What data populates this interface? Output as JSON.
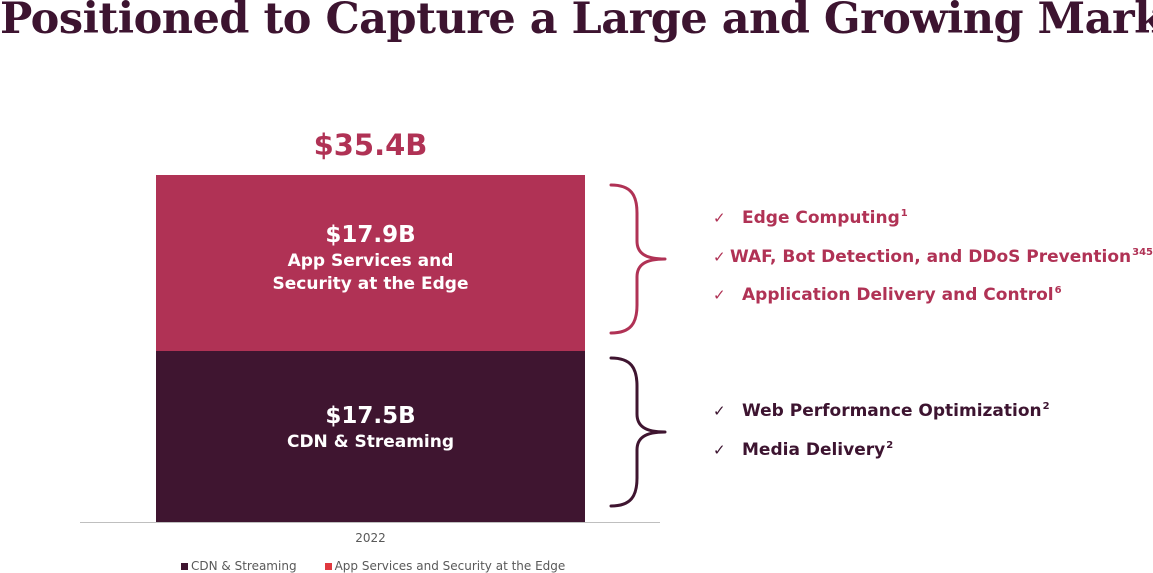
{
  "title": "Positioned to Capture a Large and Growing Market",
  "chart_data": {
    "type": "bar",
    "stacked": true,
    "categories": [
      "2022"
    ],
    "total_label": "$35.4B",
    "series": [
      {
        "name": "CDN & Streaming",
        "values": [
          17.5
        ],
        "value_label": "$17.5B",
        "segment_label": "CDN & Streaming",
        "color": "#3f1530"
      },
      {
        "name": "App Services and Security at the Edge",
        "values": [
          17.9
        ],
        "value_label": "$17.9B",
        "segment_label_lines": [
          "App Services and",
          "Security at the Edge"
        ],
        "color": "#b03255"
      }
    ],
    "ylim": [
      0,
      35.4
    ],
    "legend_position": "bottom"
  },
  "bullets": {
    "check_symbol": "✓",
    "top": {
      "color": "#b03255",
      "items": [
        {
          "text": "Edge Computing",
          "sup": "1"
        },
        {
          "text": "WAF, Bot Detection, and DDoS Prevention",
          "sup": "345"
        },
        {
          "text": "Application Delivery and Control",
          "sup": "6"
        }
      ]
    },
    "bottom": {
      "color": "#3d1430",
      "items": [
        {
          "text": "Web Performance Optimization",
          "sup": "2"
        },
        {
          "text": "Media Delivery",
          "sup": "2"
        }
      ]
    }
  }
}
